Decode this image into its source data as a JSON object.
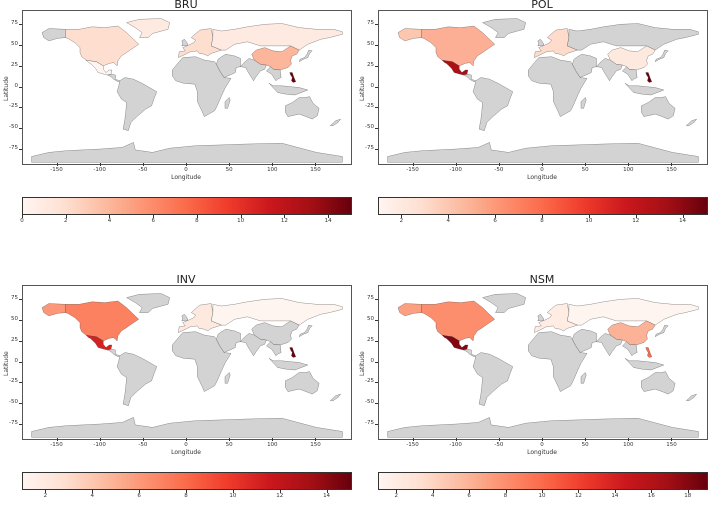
{
  "maps": [
    {
      "title": "BRU",
      "xlabel": "Longitude",
      "ylabel": "Latitude",
      "x_ticks": [
        "-150",
        "-100",
        "-50",
        "0",
        "50",
        "100",
        "150"
      ],
      "y_ticks": [
        "75",
        "50",
        "25",
        "0",
        "-25",
        "-50",
        "-75"
      ],
      "colorbar": {
        "min": 0,
        "max": 15,
        "ticks": [
          "0",
          "2",
          "4",
          "6",
          "8",
          "10",
          "12",
          "14"
        ]
      },
      "regions": {
        "north_america": 2,
        "mexico": 0,
        "greenland_west": 1,
        "europe": 2,
        "russia": 1,
        "china": 4,
        "philippines": 15,
        "south_america": null,
        "africa": null,
        "australia": null
      }
    },
    {
      "title": "POL",
      "xlabel": "Longitude",
      "ylabel": "Latitude",
      "x_ticks": [
        "-150",
        "-100",
        "-50",
        "0",
        "50",
        "100",
        "150"
      ],
      "y_ticks": [
        "75",
        "50",
        "25",
        "0",
        "-25",
        "-50",
        "-75"
      ],
      "colorbar": {
        "min": 1,
        "max": 15,
        "ticks": [
          "2",
          "4",
          "6",
          "8",
          "10",
          "12",
          "14"
        ]
      },
      "regions": {
        "alaska": 4,
        "north_america": 5,
        "mexico": 13,
        "europe": 3,
        "china": 2,
        "philippines": 15
      }
    },
    {
      "title": "INV",
      "xlabel": "Longitude",
      "ylabel": "Latitude",
      "x_ticks": [
        "-150",
        "-100",
        "-50",
        "0",
        "50",
        "100",
        "150"
      ],
      "y_ticks": [
        "75",
        "50",
        "25",
        "0",
        "-25",
        "-50",
        "-75"
      ],
      "colorbar": {
        "min": 1,
        "max": 15,
        "ticks": [
          "2",
          "4",
          "6",
          "8",
          "10",
          "12",
          "14"
        ]
      },
      "regions": {
        "alaska": 6,
        "north_america": 7,
        "mexico": 11,
        "europe": 2,
        "russia_west": 1,
        "philippines": 15
      }
    },
    {
      "title": "NSM",
      "xlabel": "Longitude",
      "ylabel": "Latitude",
      "x_ticks": [
        "-150",
        "-100",
        "-50",
        "0",
        "50",
        "100",
        "150"
      ],
      "y_ticks": [
        "75",
        "50",
        "25",
        "0",
        "-25",
        "-50",
        "-75"
      ],
      "colorbar": {
        "min": 1,
        "max": 19,
        "ticks": [
          "2",
          "4",
          "6",
          "8",
          "10",
          "12",
          "14",
          "16",
          "18"
        ]
      },
      "regions": {
        "alaska": 7,
        "north_america": 8,
        "mexico": 18,
        "europe": 2,
        "russia": 1,
        "china": 6,
        "philippines": 10
      }
    }
  ],
  "colors": {
    "no_data": "#d3d3d3",
    "ocean": "#ffffff",
    "cmap_low": "#fff5f0",
    "cmap_high": "#67000d"
  }
}
